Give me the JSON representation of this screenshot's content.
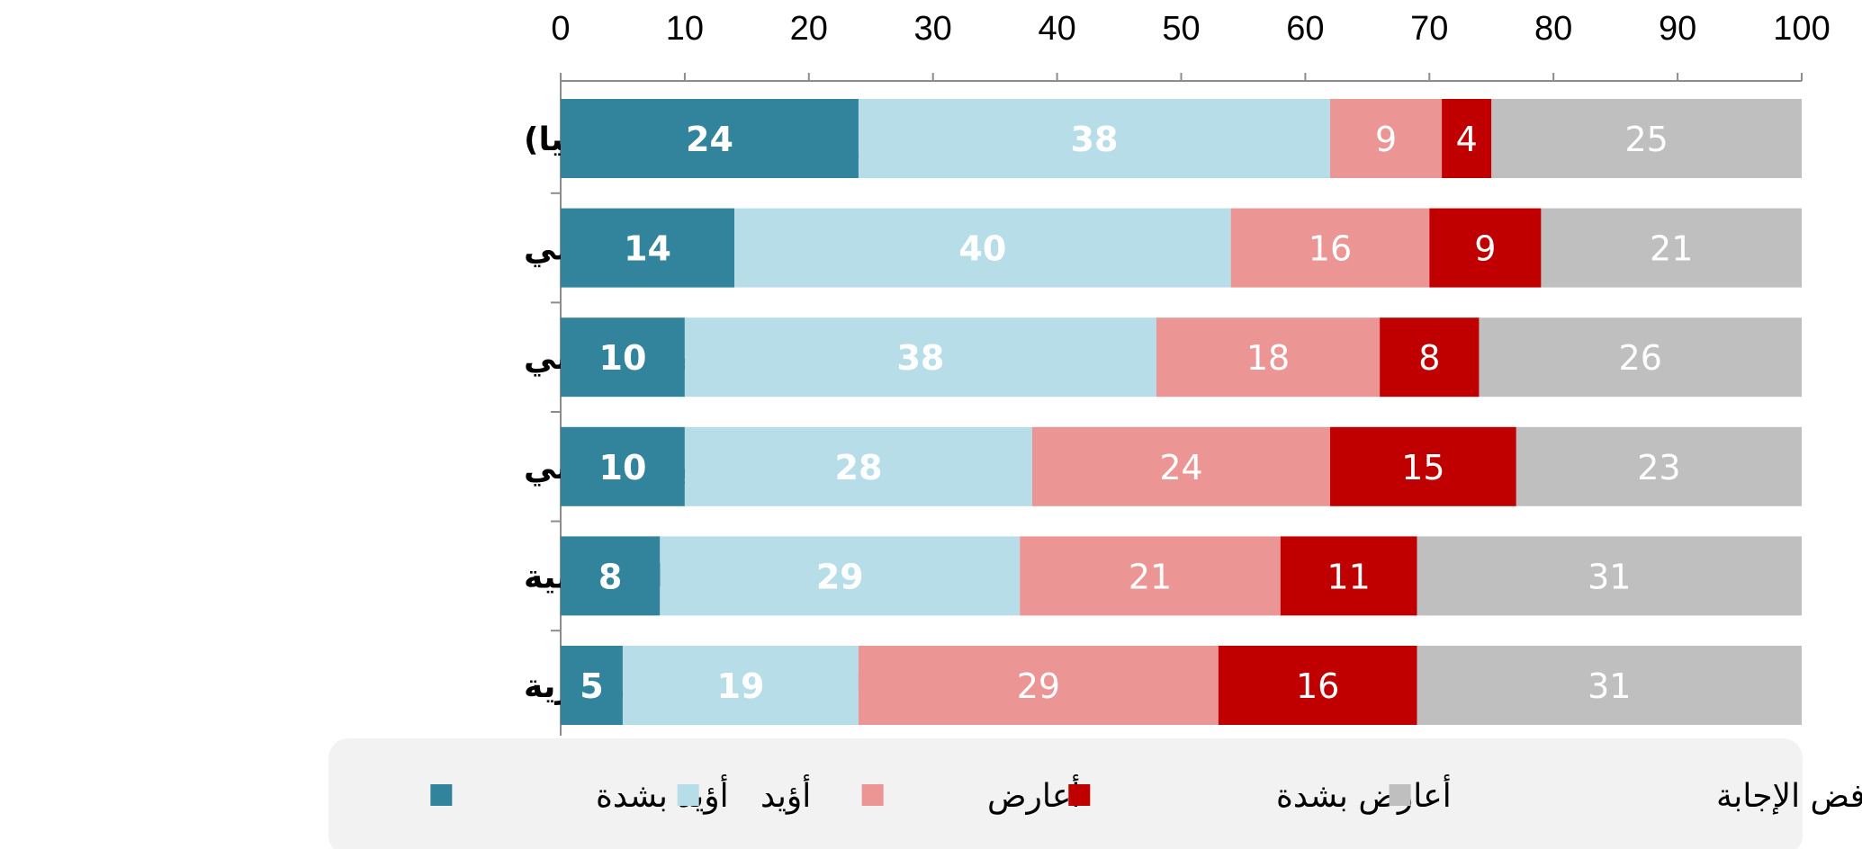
{
  "chart_data": {
    "type": "bar",
    "orientation": "horizontal",
    "stacked": true,
    "title": "",
    "xlabel": "",
    "ylabel": "",
    "xlim": [
      0,
      100
    ],
    "x_ticks": [
      "0",
      "10",
      "20",
      "30",
      "40",
      "50",
      "60",
      "70",
      "80",
      "90",
      "100"
    ],
    "categories": [
      "تيار وطني سوري (بدون أيديولوجيا)",
      "تيار اسلامي",
      "تيار قومي عروبي",
      "تيار علماني",
      "تيارات ليبرالية مدنية",
      "تيارات اشتراكية يسارية"
    ],
    "series": [
      {
        "name": "أؤيد بشدة",
        "color": "#31849b",
        "label_color": "#ffffff",
        "label_bold": true,
        "values": [
          24,
          14,
          10,
          10,
          8,
          5
        ]
      },
      {
        "name": "أؤيد",
        "color": "#b7dee8",
        "label_color": "#ffffff",
        "label_bold": true,
        "values": [
          38,
          40,
          38,
          28,
          29,
          19
        ]
      },
      {
        "name": "أعارض",
        "color": "#eb9595",
        "label_color": "#ffffff",
        "label_bold": false,
        "values": [
          9,
          16,
          18,
          24,
          21,
          29
        ]
      },
      {
        "name": "أعارض بشدة",
        "color": "#c00000",
        "label_color": "#ffffff",
        "label_bold": false,
        "values": [
          4,
          9,
          8,
          15,
          11,
          16
        ]
      },
      {
        "name": "لا أعرف/ رفض الإجابة",
        "color": "#bfbfbf",
        "label_color": "#ffffff",
        "label_bold": false,
        "values": [
          25,
          21,
          26,
          23,
          31,
          31
        ]
      }
    ],
    "legend": {
      "position": "bottom",
      "background": "#f2f2f2"
    },
    "grid": false
  }
}
